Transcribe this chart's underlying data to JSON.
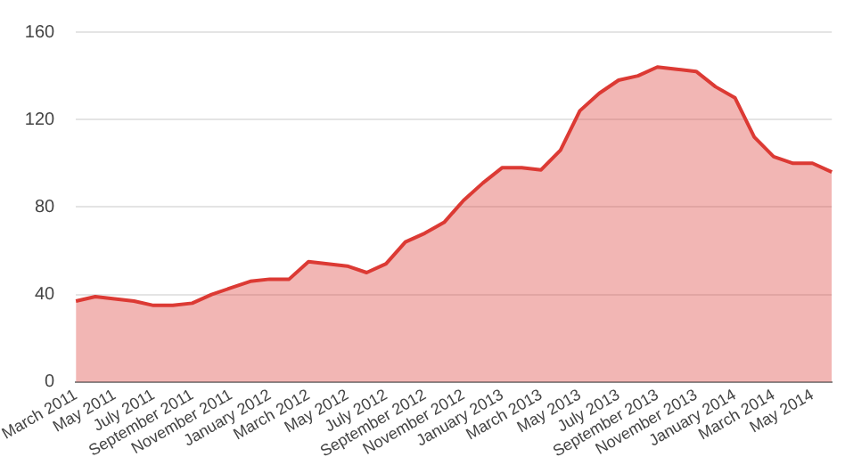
{
  "chart_data": {
    "type": "area",
    "categories": [
      "March 2011",
      null,
      "May 2011",
      null,
      "July 2011",
      null,
      "September 2011",
      null,
      "November 2011",
      null,
      "January 2012",
      null,
      "March 2012",
      null,
      "May 2012",
      null,
      "July 2012",
      null,
      "September 2012",
      null,
      "November 2012",
      null,
      "January 2013",
      null,
      "March 2013",
      null,
      "May 2013",
      null,
      "July 2013",
      null,
      "September 2013",
      null,
      "November 2013",
      null,
      "January 2014",
      null,
      "March 2014",
      null,
      "May 2014",
      null
    ],
    "series": [
      {
        "color": "#dc3a34",
        "values": [
          37,
          39,
          38,
          37,
          35,
          35,
          36,
          40,
          43,
          46,
          47,
          47,
          55,
          54,
          53,
          50,
          54,
          64,
          68,
          73,
          83,
          91,
          98,
          98,
          97,
          106,
          124,
          132,
          138,
          140,
          144,
          143,
          142,
          135,
          130,
          112,
          103,
          100,
          100,
          96
        ]
      }
    ],
    "ylim": [
      0,
      160
    ],
    "yticks": [
      0,
      40,
      80,
      120,
      160
    ],
    "grid": "y",
    "marker": "none",
    "line_style": "solid",
    "legend": false
  }
}
